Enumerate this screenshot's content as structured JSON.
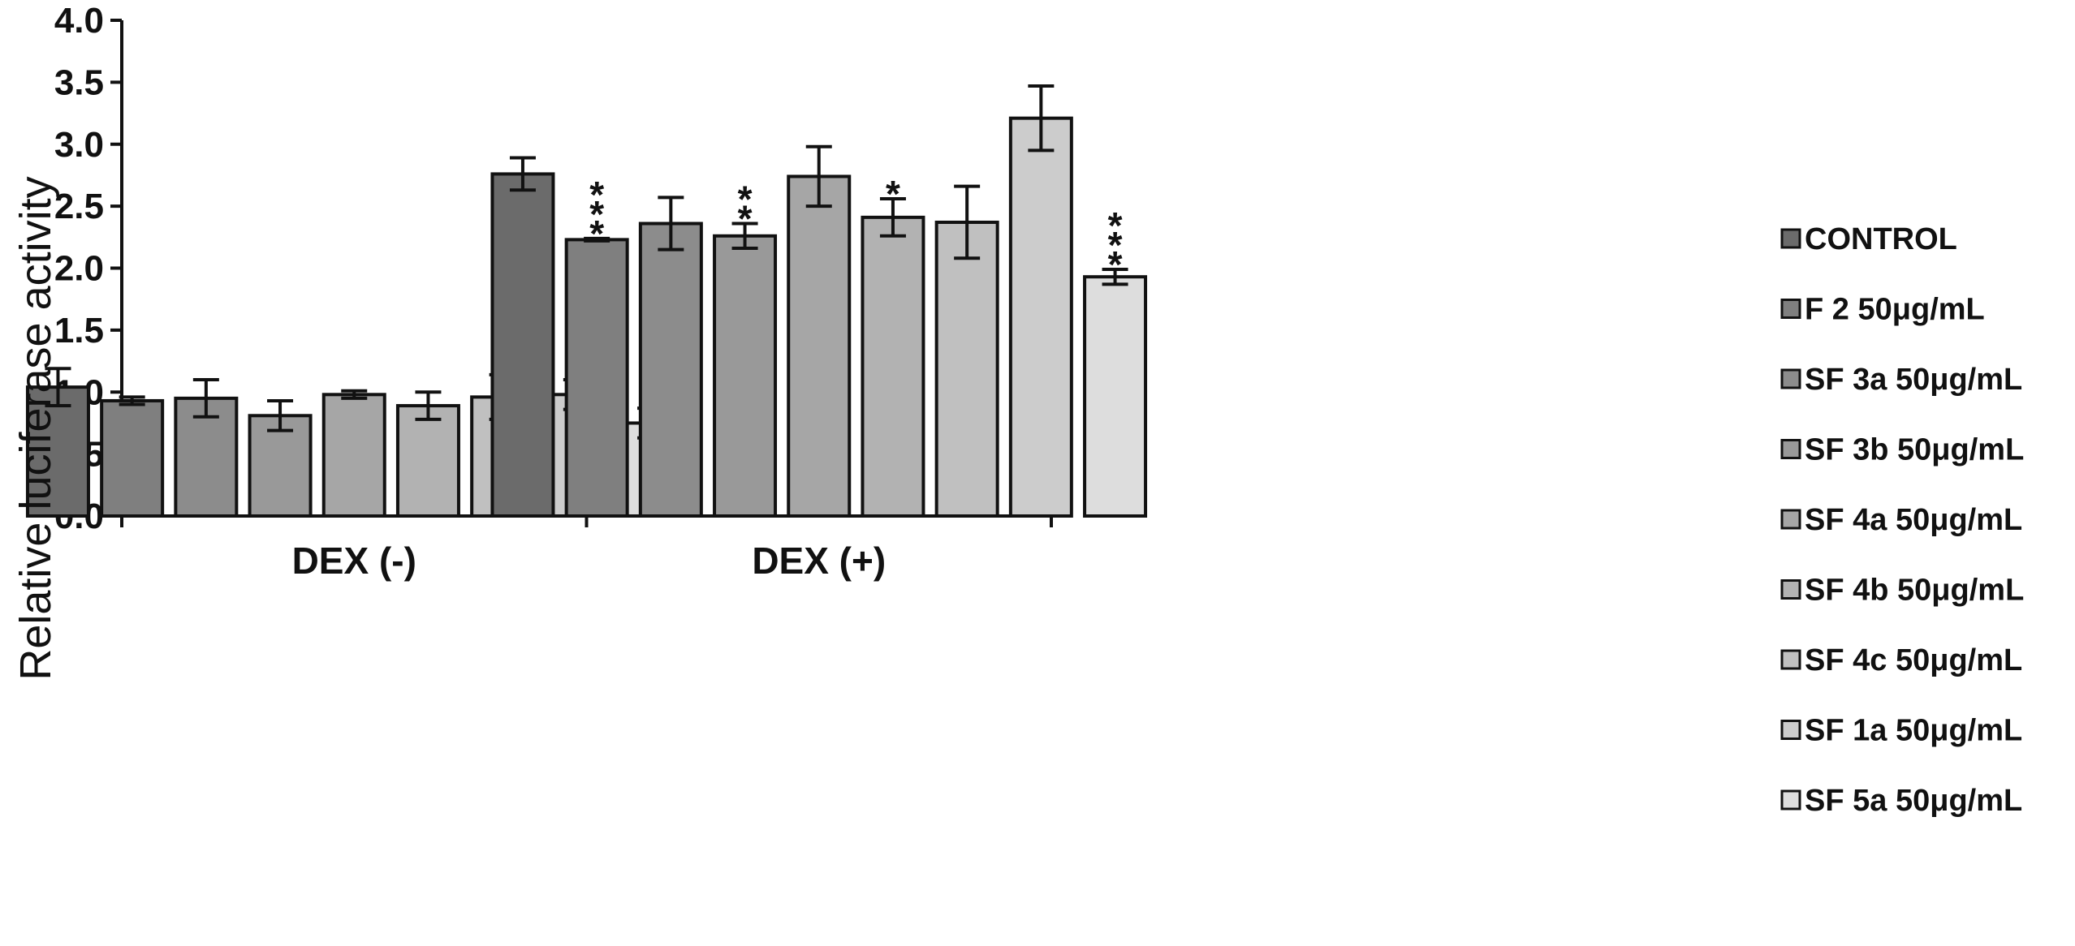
{
  "chart_data": {
    "type": "bar",
    "title": "",
    "xlabel": "",
    "ylabel": "Relative luciferase activity",
    "ylim": [
      0,
      4.0
    ],
    "yticks": [
      "0.0",
      "0.5",
      "1.0",
      "1.5",
      "2.0",
      "2.5",
      "3.0",
      "3.5",
      "4.0"
    ],
    "grid": false,
    "legend_position": "right",
    "categories": [
      "DEX (-)",
      "DEX (+)"
    ],
    "series": [
      {
        "name": "CONTROL",
        "color": "#6b6b6b",
        "values": [
          1.04,
          2.76
        ],
        "errors": [
          0.15,
          0.13
        ],
        "significance": [
          "",
          ""
        ]
      },
      {
        "name": "F 2 50μg/mL",
        "color": "#7f7f7f",
        "values": [
          0.93,
          2.23
        ],
        "errors": [
          0.03,
          0.01
        ],
        "significance": [
          "",
          "***"
        ]
      },
      {
        "name": "SF 3a 50μg/mL",
        "color": "#8c8c8c",
        "values": [
          0.95,
          2.36
        ],
        "errors": [
          0.15,
          0.21
        ],
        "significance": [
          "",
          ""
        ]
      },
      {
        "name": "SF 3b 50μg/mL",
        "color": "#999999",
        "values": [
          0.81,
          2.26
        ],
        "errors": [
          0.12,
          0.1
        ],
        "significance": [
          "",
          "**"
        ]
      },
      {
        "name": "SF 4a 50μg/mL",
        "color": "#a6a6a6",
        "values": [
          0.98,
          2.74
        ],
        "errors": [
          0.03,
          0.24
        ],
        "significance": [
          "",
          ""
        ]
      },
      {
        "name": "SF 4b 50μg/mL",
        "color": "#b2b2b2",
        "values": [
          0.89,
          2.41
        ],
        "errors": [
          0.11,
          0.15
        ],
        "significance": [
          "",
          "*"
        ]
      },
      {
        "name": "SF 4c 50μg/mL",
        "color": "#c0c0c0",
        "values": [
          0.96,
          2.37
        ],
        "errors": [
          0.18,
          0.29
        ],
        "significance": [
          "",
          ""
        ]
      },
      {
        "name": "SF 1a 50μg/mL",
        "color": "#cccccc",
        "values": [
          0.98,
          3.21
        ],
        "errors": [
          0.12,
          0.26
        ],
        "significance": [
          "",
          ""
        ]
      },
      {
        "name": "SF 5a 50μg/mL",
        "color": "#dddddd",
        "values": [
          0.75,
          1.93
        ],
        "errors": [
          0.12,
          0.06
        ],
        "significance": [
          "",
          "***"
        ]
      }
    ]
  }
}
